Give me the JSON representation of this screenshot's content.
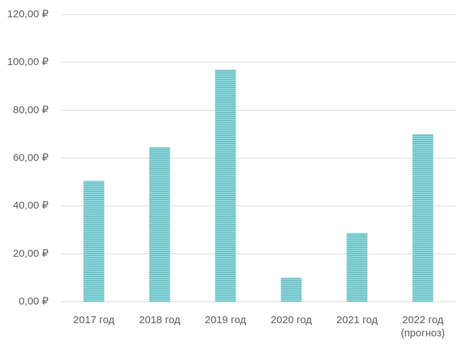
{
  "chart_data": {
    "type": "bar",
    "categories": [
      "2017 год",
      "2018 год",
      "2019 год",
      "2020 год",
      "2021 год",
      "2022 год (прогноз)"
    ],
    "values": [
      50.5,
      64.5,
      97,
      10,
      28.7,
      70
    ],
    "color": "#7fcdd1",
    "ylim": [
      0,
      120
    ],
    "yticks": [
      {
        "value": 0,
        "label": "0,00 ₽"
      },
      {
        "value": 20,
        "label": "20,00 ₽"
      },
      {
        "value": 40,
        "label": "40,00 ₽"
      },
      {
        "value": 60,
        "label": "60,00 ₽"
      },
      {
        "value": 80,
        "label": "80,00 ₽"
      },
      {
        "value": 100,
        "label": "100,00 ₽"
      },
      {
        "value": 120,
        "label": "120,00 ₽"
      }
    ],
    "grid": true
  }
}
